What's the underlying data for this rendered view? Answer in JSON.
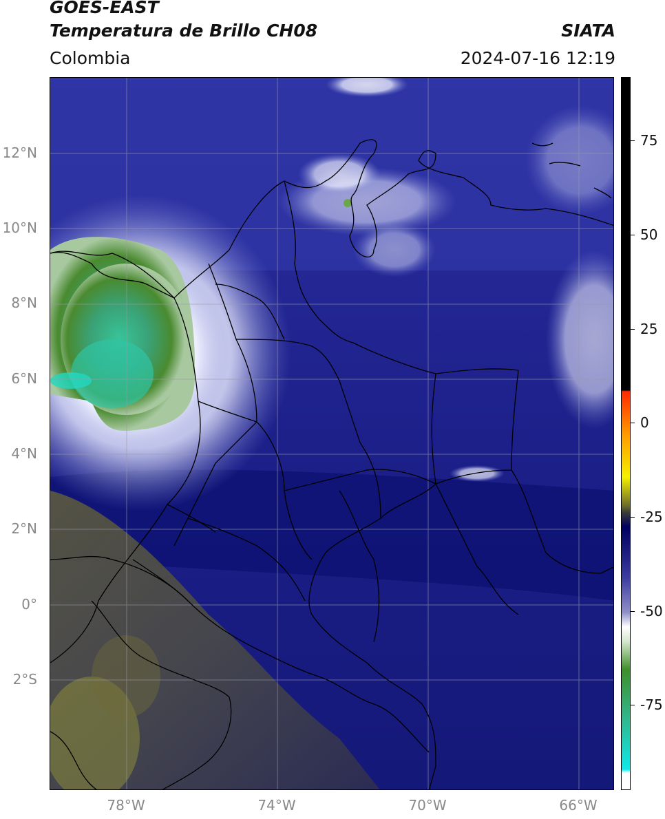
{
  "header": {
    "satellite": "GOES-EAST",
    "product": "Temperatura de Brillo CH08",
    "organization": "SIATA",
    "region": "Colombia",
    "datetime": "2024-07-16 12:19"
  },
  "axes": {
    "lat_labels": [
      "12°N",
      "10°N",
      "8°N",
      "6°N",
      "4°N",
      "2°N",
      "0°",
      "2°S"
    ],
    "lon_labels": [
      "78°W",
      "74°W",
      "70°W",
      "66°W"
    ]
  },
  "colorbar": {
    "labels": [
      "75",
      "50",
      "25",
      "0",
      "-25",
      "-50",
      "-75"
    ],
    "colors": {
      "black_top": "#000000",
      "red": "#ff2a00",
      "orange": "#ff9a00",
      "yellow": "#f5f000",
      "olive": "#6d6d2a",
      "navy": "#0a0a78",
      "blue": "#3a3aa0",
      "white": "#ffffff",
      "green": "#3f8f2a",
      "teal": "#30b890",
      "cyan": "#10e8e8"
    }
  }
}
